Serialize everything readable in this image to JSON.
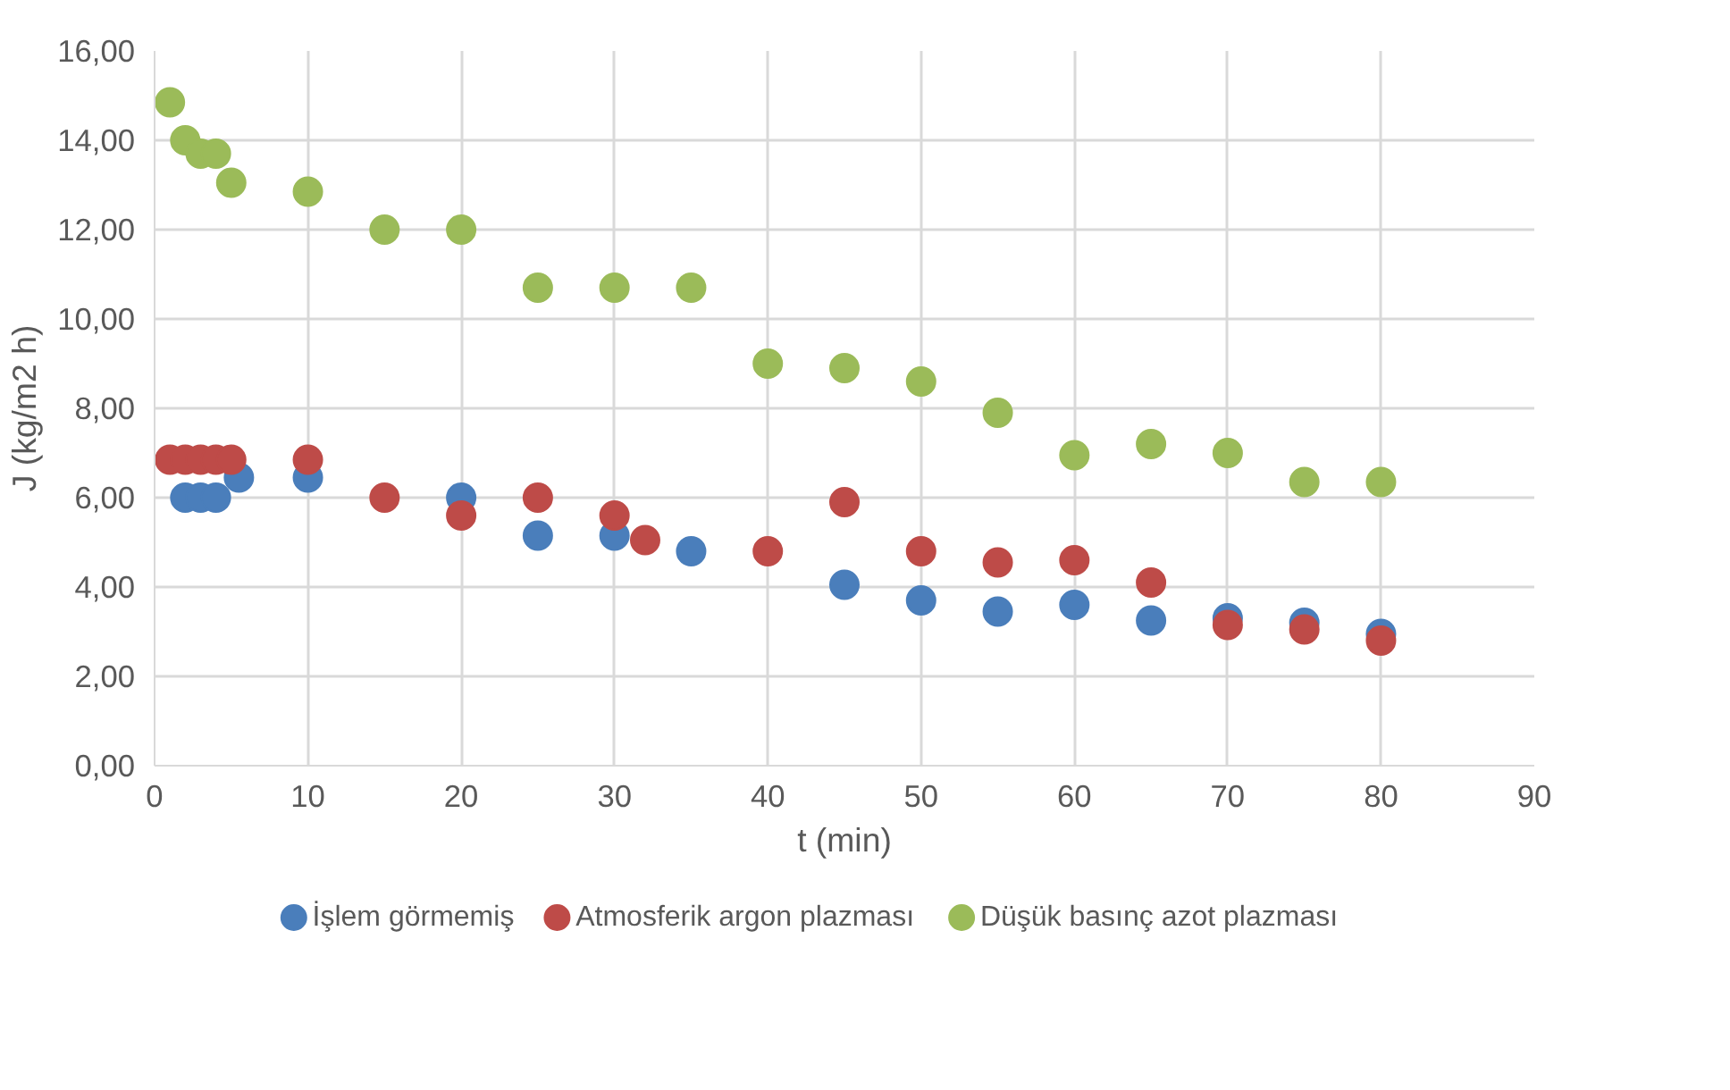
{
  "chart_data": {
    "type": "scatter",
    "xlabel": "t (min)",
    "ylabel": "J (kg/m2 h)",
    "xlim": [
      0,
      90
    ],
    "xticks": [
      0,
      10,
      20,
      30,
      40,
      50,
      60,
      70,
      80,
      90
    ],
    "ylim": [
      0,
      16
    ],
    "yticks": [
      {
        "value": 0,
        "label": "0,00"
      },
      {
        "value": 2,
        "label": "2,00"
      },
      {
        "value": 4,
        "label": "4,00"
      },
      {
        "value": 6,
        "label": "6,00"
      },
      {
        "value": 8,
        "label": "8,00"
      },
      {
        "value": 10,
        "label": "10,00"
      },
      {
        "value": 12,
        "label": "12,00"
      },
      {
        "value": 14,
        "label": "14,00"
      },
      {
        "value": 16,
        "label": "16,00"
      }
    ],
    "grid": true,
    "legend": "bottom",
    "marker": "circle",
    "series": [
      {
        "name": "İşlem görmemiş",
        "color": "#4a7ebb",
        "x": [
          2,
          3,
          4,
          5.5,
          10,
          20,
          25,
          30,
          35,
          45,
          50,
          55,
          60,
          65,
          70,
          75,
          80
        ],
        "values": [
          6.0,
          6.0,
          6.0,
          6.45,
          6.45,
          6.0,
          5.15,
          5.15,
          4.8,
          4.05,
          3.7,
          3.45,
          3.6,
          3.25,
          3.3,
          3.2,
          2.95
        ]
      },
      {
        "name": "Atmosferik argon plazması",
        "color": "#be4b48",
        "x": [
          1,
          2,
          3,
          4,
          5,
          10,
          15,
          20,
          25,
          30,
          32,
          40,
          45,
          50,
          55,
          60,
          65,
          70,
          75,
          80
        ],
        "values": [
          6.85,
          6.85,
          6.85,
          6.85,
          6.85,
          6.85,
          6.0,
          5.6,
          6.0,
          5.6,
          5.05,
          4.8,
          5.9,
          4.8,
          4.55,
          4.6,
          4.1,
          3.15,
          3.05,
          2.8
        ]
      },
      {
        "name": "Düşük basınç azot plazması",
        "color": "#9bbb59",
        "x": [
          1,
          2,
          3,
          4,
          5,
          10,
          15,
          20,
          25,
          30,
          35,
          40,
          45,
          50,
          55,
          60,
          65,
          70,
          75,
          80
        ],
        "values": [
          14.85,
          14.0,
          13.7,
          13.7,
          13.05,
          12.85,
          12.0,
          12.0,
          10.7,
          10.7,
          10.7,
          9.0,
          8.9,
          8.6,
          7.9,
          6.95,
          7.2,
          7.0,
          6.35,
          6.35
        ]
      }
    ]
  }
}
